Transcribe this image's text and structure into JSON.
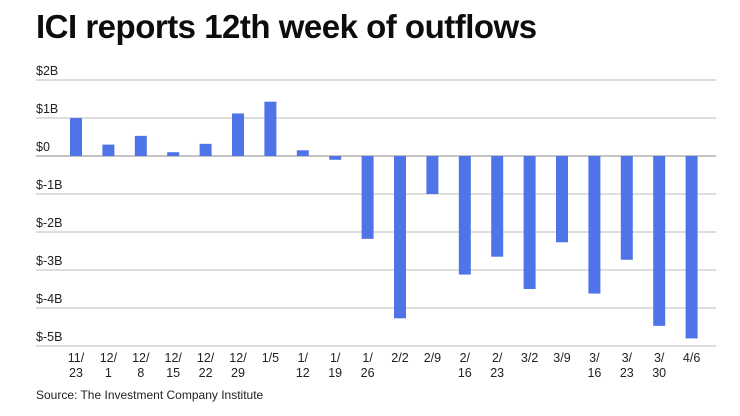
{
  "title": "ICI reports 12th week of outflows",
  "source": "Source: The Investment Company Institute",
  "chart_data": {
    "type": "bar",
    "title": "ICI reports 12th week of outflows",
    "xlabel": "",
    "ylabel": "",
    "ylim": [
      -5,
      2
    ],
    "yticks": [
      2,
      1,
      0,
      -1,
      -2,
      -3,
      -4,
      -5
    ],
    "ytick_labels": [
      "$2B",
      "$1B",
      "$0",
      "$-1B",
      "$-2B",
      "$-3B",
      "$-4B",
      "$-5B"
    ],
    "grid": true,
    "bar_color": "#4f74e8",
    "categories": [
      [
        "11/",
        "23"
      ],
      [
        "12/",
        "1"
      ],
      [
        "12/",
        "8"
      ],
      [
        "12/",
        "15"
      ],
      [
        "12/",
        "22"
      ],
      [
        "12/",
        "29"
      ],
      [
        "1/5"
      ],
      [
        "1/",
        "12"
      ],
      [
        "1/",
        "19"
      ],
      [
        "1/",
        "26"
      ],
      [
        "2/2"
      ],
      [
        "2/9"
      ],
      [
        "2/",
        "16"
      ],
      [
        "2/",
        "23"
      ],
      [
        "3/2"
      ],
      [
        "3/9"
      ],
      [
        "3/",
        "16"
      ],
      [
        "3/",
        "23"
      ],
      [
        "3/",
        "30"
      ],
      [
        "4/6"
      ]
    ],
    "values": [
      1.0,
      0.3,
      0.53,
      0.1,
      0.32,
      1.12,
      1.43,
      0.15,
      -0.1,
      -2.18,
      -4.27,
      -1.0,
      -3.12,
      -2.65,
      -3.5,
      -2.27,
      -3.62,
      -2.73,
      -4.47,
      -4.8
    ]
  }
}
